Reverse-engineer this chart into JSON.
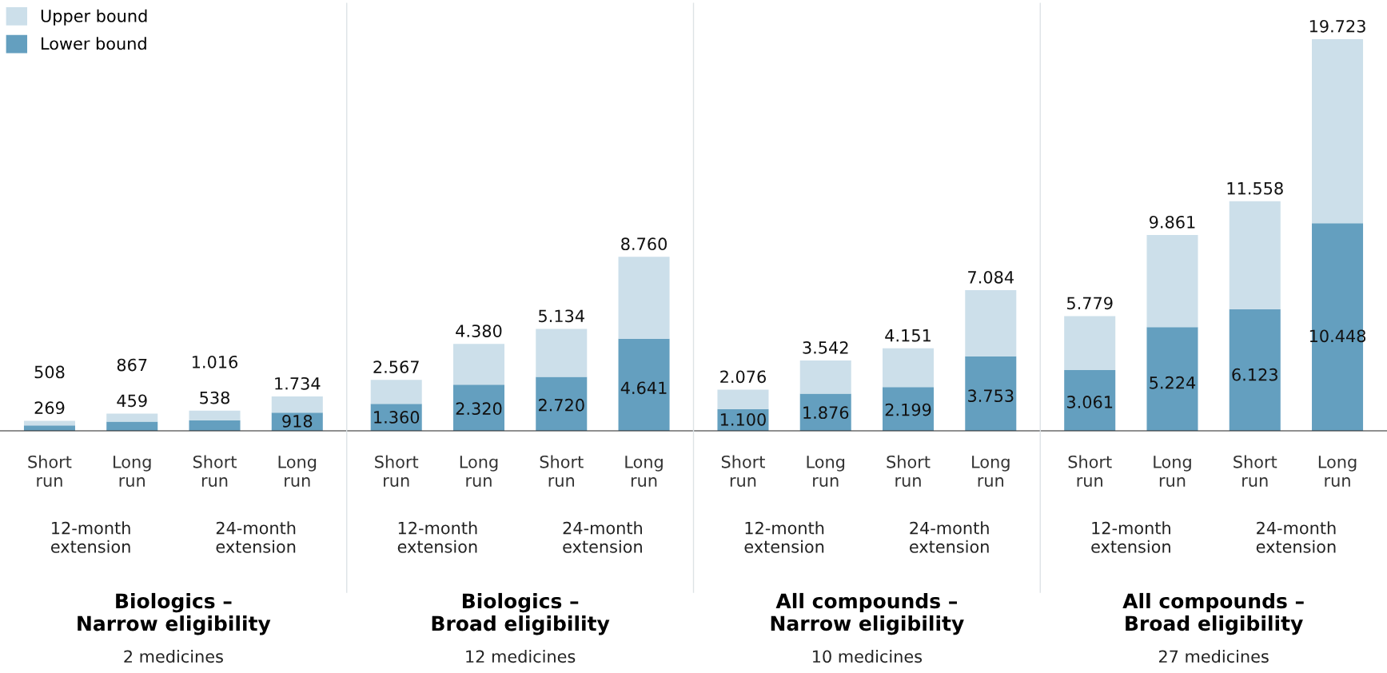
{
  "chart_data": [
    {
      "type": "bar",
      "stacked": true,
      "title": "Biologics –\nNarrow eligibility",
      "subtitle": "2 medicines",
      "categories": [
        "Short\nrun",
        "Long\nrun",
        "Short\nrun",
        "Long\nrun"
      ],
      "annotations": [
        "12-month\nextension",
        "24-month\nextension"
      ],
      "legend": "top left",
      "totals": [
        "508",
        "867",
        "1.016",
        "1.734"
      ],
      "series": [
        {
          "name": "Lower bound",
          "color": "#649fbf",
          "values": [
            269,
            459,
            538,
            918
          ],
          "value_labels": [
            "269",
            "459",
            "538",
            "918"
          ]
        },
        {
          "name": "Upper bound",
          "color": "#ccdfea",
          "values": [
            239,
            408,
            478,
            816
          ]
        }
      ]
    },
    {
      "type": "bar",
      "stacked": true,
      "title": "Biologics –\nBroad eligibility",
      "subtitle": "12 medicines",
      "categories": [
        "Short\nrun",
        "Long\nrun",
        "Short\nrun",
        "Long\nrun"
      ],
      "annotations": [
        "12-month\nextension",
        "24-month\nextension"
      ],
      "totals": [
        "2.567",
        "4.380",
        "5.134",
        "8.760"
      ],
      "series": [
        {
          "color": "#649fbf",
          "values": [
            1360,
            2320,
            2720,
            4641
          ],
          "value_labels": [
            "1.360",
            "2.320",
            "2.720",
            "4.641"
          ]
        },
        {
          "color": "#ccdfea",
          "values": [
            1207,
            2060,
            2414,
            4119
          ]
        }
      ]
    },
    {
      "type": "bar",
      "stacked": true,
      "title": "All compounds –\nNarrow eligibility",
      "subtitle": "10 medicines",
      "categories": [
        "Short\nrun",
        "Long\nrun",
        "Short\nrun",
        "Long\nrun"
      ],
      "annotations": [
        "12-month\nextension",
        "24-month\nextension"
      ],
      "totals": [
        "2.076",
        "3.542",
        "4.151",
        "7.084"
      ],
      "series": [
        {
          "color": "#649fbf",
          "values": [
            1100,
            1876,
            2199,
            3753
          ],
          "value_labels": [
            "1.100",
            "1.876",
            "2.199",
            "3.753"
          ]
        },
        {
          "color": "#ccdfea",
          "values": [
            976,
            1666,
            1952,
            3331
          ]
        }
      ]
    },
    {
      "type": "bar",
      "stacked": true,
      "title": "All compounds –\nBroad eligibility",
      "subtitle": "27 medicines",
      "categories": [
        "Short\nrun",
        "Long\nrun",
        "Short\nrun",
        "Long\nrun"
      ],
      "annotations": [
        "12-month\nextension",
        "24-month\nextension"
      ],
      "totals": [
        "5.779",
        "9.861",
        "11.558",
        "19.723"
      ],
      "series": [
        {
          "color": "#649fbf",
          "values": [
            3061,
            5224,
            6123,
            10448
          ],
          "value_labels": [
            "3.061",
            "5.224",
            "6.123",
            "10.448"
          ]
        },
        {
          "color": "#ccdfea",
          "values": [
            2718,
            4637,
            5435,
            9275
          ]
        }
      ]
    }
  ]
}
